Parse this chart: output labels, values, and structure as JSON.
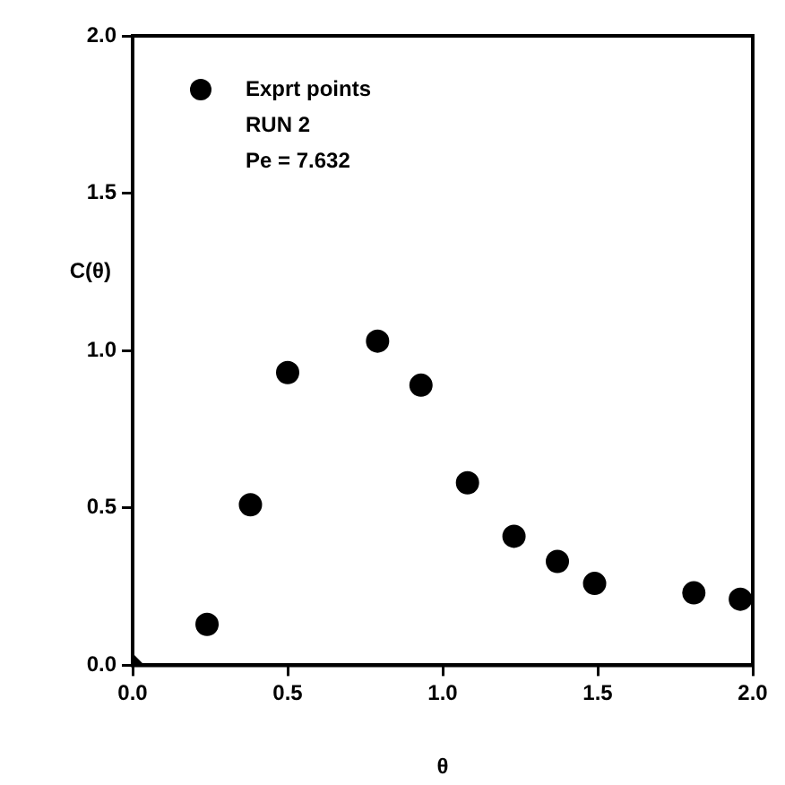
{
  "chart_data": {
    "type": "scatter",
    "xlabel": "θ",
    "ylabel": "C(θ)",
    "xlim": [
      0,
      2
    ],
    "ylim": [
      0,
      2
    ],
    "xticks": [
      {
        "value": 0,
        "label": "0.0"
      },
      {
        "value": 0.5,
        "label": "0.5"
      },
      {
        "value": 1,
        "label": "1.0"
      },
      {
        "value": 1.5,
        "label": "1.5"
      },
      {
        "value": 2,
        "label": "2.0"
      }
    ],
    "yticks": [
      {
        "value": 0,
        "label": "0.0"
      },
      {
        "value": 0.5,
        "label": "0.5"
      },
      {
        "value": 1,
        "label": "1.0"
      },
      {
        "value": 1.5,
        "label": "1.5"
      },
      {
        "value": 2,
        "label": "2.0"
      }
    ],
    "grid": false,
    "legend": "top left",
    "marker": "circle",
    "annotations": [
      "RUN 2",
      "Pe = 7.632"
    ],
    "series": [
      {
        "name": "Exprt points",
        "color": "#000000",
        "x": [
          0.24,
          0.38,
          0.5,
          0.79,
          0.93,
          1.08,
          1.23,
          1.37,
          1.49,
          1.81,
          1.96
        ],
        "values": [
          0.13,
          0.51,
          0.93,
          1.03,
          0.89,
          0.58,
          0.41,
          0.33,
          0.26,
          0.23,
          0.21
        ]
      },
      {
        "color": "#000000",
        "marker": "diamond",
        "x": [
          0
        ],
        "values": [
          0
        ]
      }
    ]
  }
}
